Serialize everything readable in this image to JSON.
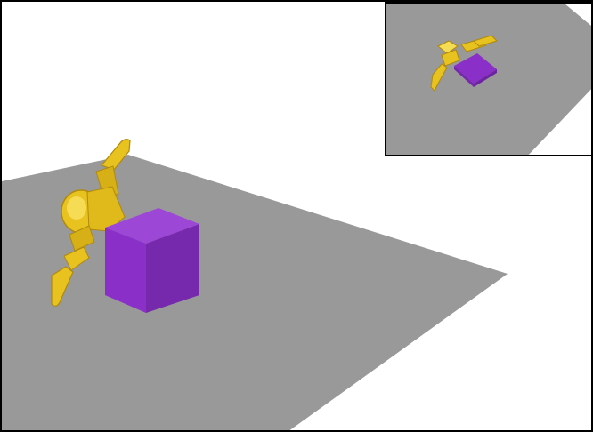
{
  "scene": {
    "colors": {
      "background": "#ffffff",
      "floor": "#999999",
      "cube_front": "#8a2fc7",
      "cube_side": "#7629ad",
      "cube_top": "#9d47d6",
      "gripper_main": "#e8c21f",
      "gripper_dark": "#b08a0c",
      "gripper_light": "#f6db55",
      "border": "#000000"
    },
    "objects": {
      "main_view": "main-camera-view",
      "inset_view": "top-camera-view",
      "target_object": "purple-cube",
      "robot_effector": "yellow-robot-gripper"
    }
  }
}
